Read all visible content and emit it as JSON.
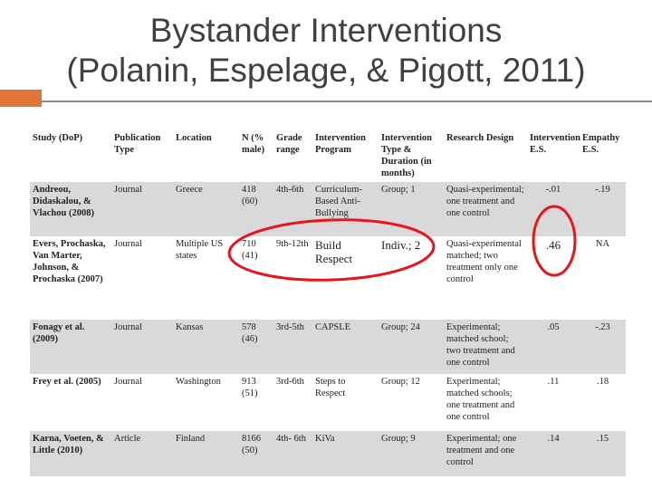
{
  "slide": {
    "title_line1": "Bystander Interventions",
    "title_line2": "(Polanin, Espelage, & Pigott, 2011)"
  },
  "table": {
    "headers": [
      "Study (DoP)",
      "Publication Type",
      "Location",
      "N (% male)",
      "Grade range",
      "Intervention Program",
      "Intervention Type & Duration (in months)",
      "Research Design",
      "Intervention E.S.",
      "Empathy E.S."
    ],
    "rows": [
      {
        "study": "Andreou, Didaskalou, & Vlachou (2008)",
        "pub": "Journal",
        "location": "Greece",
        "n": "418 (60)",
        "grade": "4th-6th",
        "program": "Curriculum-Based Anti-Bullying",
        "type": "Group; 1",
        "design": "Quasi-experimental; one treatment and one control",
        "int_es": "-.01",
        "emp_es": "-.19"
      },
      {
        "study": "Evers, Prochaska, Van Marter, Johnson, & Prochaska (2007)",
        "pub": "Journal",
        "location": "Multiple US states",
        "n": "710 (41)",
        "grade": "9th-12th",
        "program": "Build Respect",
        "type": "Indiv.; 2",
        "design": "Quasi-experimental matched; two treatment only one control",
        "int_es": ".46",
        "emp_es": "NA"
      },
      {
        "study": "Fonagy et al. (2009)",
        "pub": "Journal",
        "location": "Kansas",
        "n": "578 (46)",
        "grade": "3rd-5th",
        "program": "CAPSLE",
        "type": "Group; 24",
        "design": "Experimental; matched school; two treatment and one control",
        "int_es": ".05",
        "emp_es": "-.23"
      },
      {
        "study": "Frey et al. (2005)",
        "pub": "Journal",
        "location": "Washington",
        "n": "913 (51)",
        "grade": "3rd-6th",
        "program": "Steps to Respect",
        "type": "Group; 12",
        "design": "Experimental; matched schools; one treatment and one control",
        "int_es": ".11",
        "emp_es": ".18"
      },
      {
        "study": "Karna, Voeten, & Little (2010)",
        "pub": "Article",
        "location": "Finland",
        "n": "8166 (50)",
        "grade": "4th- 6th",
        "program": "KiVa",
        "type": "Group; 9",
        "design": "Experimental; one treatment and one control",
        "int_es": ".14",
        "emp_es": ".15"
      }
    ]
  },
  "annotation_color": "#e8141c",
  "accent_color": "#e0763a"
}
